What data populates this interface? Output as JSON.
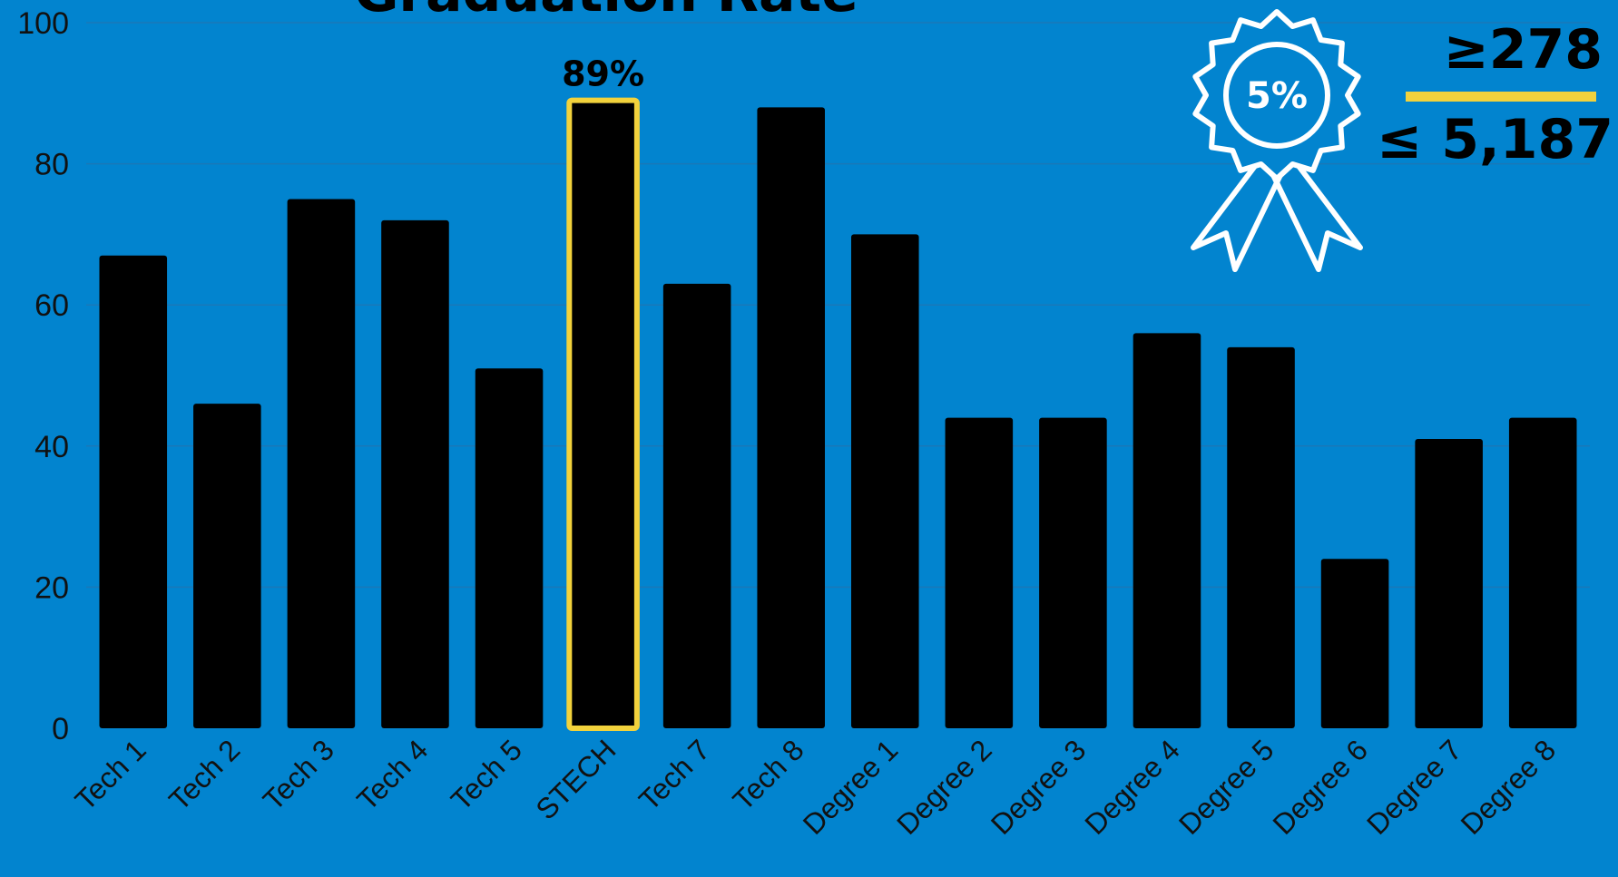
{
  "chart_data": {
    "type": "bar",
    "title": "Graduation Rate",
    "categories": [
      "Tech 1",
      "Tech 2",
      "Tech 3",
      "Tech 4",
      "Tech 5",
      "STECH",
      "Tech 7",
      "Tech 8",
      "Degree 1",
      "Degree 2",
      "Degree 3",
      "Degree 4",
      "Degree 5",
      "Degree 6",
      "Degree 7",
      "Degree 8"
    ],
    "values": [
      67,
      46,
      75,
      72,
      51,
      89,
      63,
      88,
      70,
      44,
      44,
      56,
      54,
      24,
      41,
      44
    ],
    "ylim": [
      0,
      100
    ],
    "yticks": [
      0,
      20,
      40,
      60,
      80,
      100
    ],
    "grid": true,
    "highlight": {
      "category": "STECH",
      "label": "89%",
      "color": "#F2D23C"
    },
    "bar_color": "#000000",
    "background_color": "#0284CF"
  },
  "badge": {
    "icon": "award-ribbon-icon",
    "label": "5%"
  },
  "stats": {
    "top": "≥278",
    "bottom": "≤ 5,187",
    "divider_color": "#F2D23C"
  }
}
